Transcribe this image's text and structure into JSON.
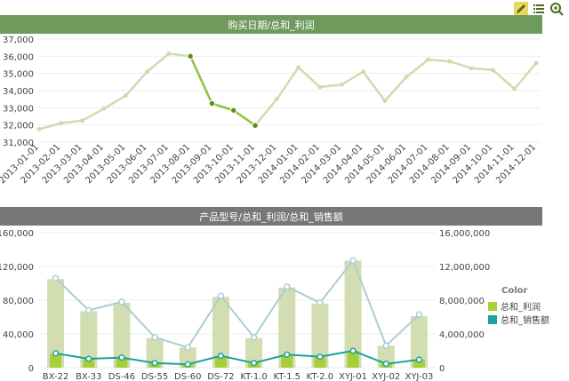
{
  "toolbar": {
    "icons": [
      "pencil-icon",
      "list-icon",
      "zoom-icon"
    ],
    "active_color": "#e8d860"
  },
  "chart_data": [
    {
      "type": "line",
      "title": "购买日期/总和_利润",
      "header_color": "#6f9a5d",
      "x": [
        "2013-01-01",
        "2013-02-01",
        "2013-03-01",
        "2013-04-01",
        "2013-05-01",
        "2013-06-01",
        "2013-07-01",
        "2013-08-01",
        "2013-09-01",
        "2013-10-01",
        "2013-11-01",
        "2013-12-01",
        "2014-01-01",
        "2014-02-01",
        "2014-03-01",
        "2014-04-01",
        "2014-05-01",
        "2014-06-01",
        "2014-07-01",
        "2014-08-01",
        "2014-09-01",
        "2014-10-01",
        "2014-11-01",
        "2014-12-01"
      ],
      "values": [
        31750,
        32100,
        32250,
        32950,
        33700,
        35100,
        36150,
        36000,
        33250,
        32850,
        31970,
        33500,
        35350,
        34200,
        34350,
        35100,
        33400,
        34800,
        35800,
        35700,
        35300,
        35200,
        34100,
        35600
      ],
      "highlight_range": [
        7,
        10
      ],
      "ylim": [
        31000,
        37000
      ],
      "yticks": [
        "31,000",
        "32,000",
        "33,000",
        "34,000",
        "35,000",
        "36,000",
        "37,000"
      ],
      "colors": {
        "line": "#cfdcb0",
        "highlight": "#8ec63f",
        "marker_fill": "#5f8c1e"
      }
    },
    {
      "type": "bar",
      "title": "产品型号/总和_利润/总和_销售额",
      "header_color": "#777777",
      "categories": [
        "BX-22",
        "BX-33",
        "DS-46",
        "DS-55",
        "DS-60",
        "DS-72",
        "KT-1.0",
        "KT-1.5",
        "KT-2.0",
        "XYJ-01",
        "XYJ-02",
        "XYJ-03"
      ],
      "series": [
        {
          "name": "总和_利润",
          "axis": "left",
          "values": [
            16500,
            10500,
            12000,
            5500,
            4000,
            13500,
            5500,
            15000,
            12500,
            20000,
            4500,
            10000
          ]
        },
        {
          "name": "总和_销售额",
          "axis": "right",
          "values": [
            1700000,
            1050000,
            1200000,
            550000,
            400000,
            1400000,
            550000,
            1550000,
            1300000,
            2000000,
            450000,
            950000
          ]
        }
      ],
      "secondary_bars": [
        105000,
        67000,
        77000,
        35000,
        24000,
        84000,
        35000,
        95000,
        76000,
        127000,
        26000,
        61000
      ],
      "secondary_line": [
        10600000,
        6800000,
        7800000,
        3600000,
        2400000,
        8500000,
        3600000,
        9600000,
        7700000,
        12700000,
        2600000,
        6300000
      ],
      "ylim_left": [
        0,
        160000
      ],
      "ylim_right": [
        0,
        16000000
      ],
      "yticks_left": [
        "0",
        "40,000",
        "80,000",
        "120,000",
        "160,000"
      ],
      "yticks_right": [
        "0",
        "4,000,000",
        "8,000,000",
        "12,000,000",
        "16,000,000"
      ],
      "legend": {
        "title": "Color",
        "position": "right"
      },
      "colors": {
        "profit": "#a8cf38",
        "sales": "#1aa39a",
        "bg_bar": "#d3ddb2",
        "bg_line": "#a9cfd3"
      }
    }
  ]
}
